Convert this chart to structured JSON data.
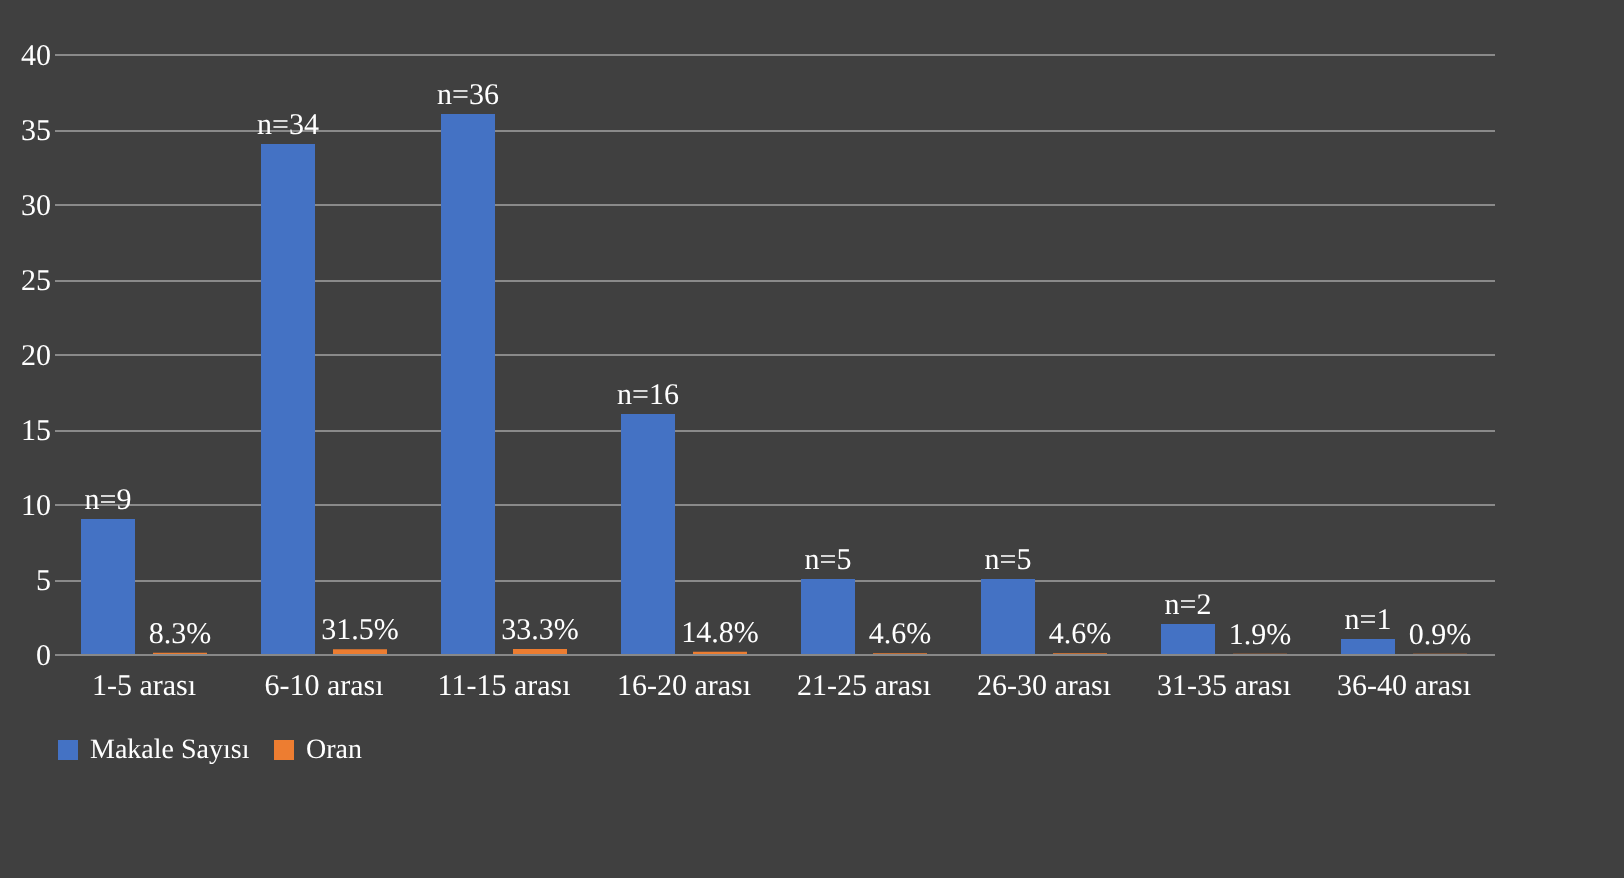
{
  "chart_data": {
    "type": "bar",
    "categories": [
      "1-5 arası",
      "6-10 arası",
      "11-15 arası",
      "16-20 arası",
      "21-25 arası",
      "26-30 arası",
      "31-35 arası",
      "36-40 arası"
    ],
    "series": [
      {
        "name": "Makale Sayısı",
        "color": "#4472c4",
        "values": [
          9,
          34,
          36,
          16,
          5,
          5,
          2,
          1
        ],
        "value_labels": [
          "n=9",
          "n=34",
          "n=36",
          "n=16",
          "n=5",
          "n=5",
          "n=2",
          "n=1"
        ]
      },
      {
        "name": "Oran",
        "color": "#ed7d31",
        "values": [
          0.083,
          0.315,
          0.333,
          0.148,
          0.046,
          0.046,
          0.019,
          0.009
        ],
        "value_labels": [
          "8.3%",
          "31.5%",
          "33.3%",
          "14.8%",
          "4.6%",
          "4.6%",
          "1.9%",
          "0.9%"
        ]
      }
    ],
    "ylim": [
      0,
      40
    ],
    "yticks": [
      0,
      5,
      10,
      15,
      20,
      25,
      30,
      35,
      40
    ],
    "grid": "y",
    "legend": "bottom"
  }
}
